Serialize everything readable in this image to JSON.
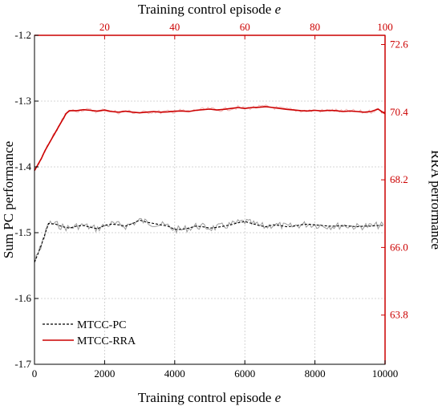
{
  "chart_data": {
    "type": "line",
    "x_top": {
      "label_text": "Training control episode ",
      "label_var": "e",
      "range": [
        0,
        100
      ],
      "ticks": [
        20,
        40,
        60,
        80,
        100
      ],
      "color": "#cc0000"
    },
    "x_bottom": {
      "label_text": "Training control episode ",
      "label_var": "e",
      "range": [
        0,
        10000
      ],
      "ticks": [
        0,
        2000,
        4000,
        6000,
        8000,
        10000
      ]
    },
    "y_left": {
      "label": "Sum PC performance",
      "range": [
        -1.7,
        -1.2
      ],
      "ticks": [
        -1.7,
        -1.6,
        -1.5,
        -1.4,
        -1.3,
        -1.2
      ],
      "tick_labels": [
        "-1.7",
        "-1.6",
        "-1.5",
        "-1.4",
        "-1.3",
        "-1.2"
      ]
    },
    "y_right": {
      "label": "RRA performance",
      "range": [
        62.2,
        72.9
      ],
      "ticks": [
        63.8,
        66.0,
        68.2,
        70.4,
        72.6
      ],
      "tick_labels": [
        "63.8",
        "66.0",
        "68.2",
        "70.4",
        "72.6"
      ],
      "color": "#cc0000"
    },
    "grid": true,
    "legend_position": "bottom-left",
    "series": [
      {
        "name": "MTCC-PC",
        "axis": "left",
        "color": "#000000",
        "raw_color": "#9a9a9a",
        "style": "dashed",
        "x": [
          0,
          100,
          200,
          300,
          400,
          600,
          800,
          1000,
          1200,
          1400,
          1600,
          1800,
          2000,
          2200,
          2400,
          2600,
          2800,
          3000,
          3200,
          3400,
          3600,
          3800,
          4000,
          4200,
          4400,
          4600,
          4800,
          5000,
          5200,
          5400,
          5600,
          5800,
          6000,
          6200,
          6400,
          6600,
          6800,
          7000,
          7200,
          7400,
          7600,
          7800,
          8000,
          8200,
          8400,
          8600,
          8800,
          9000,
          9200,
          9400,
          9600,
          9800,
          10000
        ],
        "y": [
          -1.545,
          -1.532,
          -1.518,
          -1.502,
          -1.486,
          -1.487,
          -1.491,
          -1.493,
          -1.49,
          -1.489,
          -1.492,
          -1.494,
          -1.489,
          -1.487,
          -1.488,
          -1.49,
          -1.486,
          -1.481,
          -1.484,
          -1.486,
          -1.488,
          -1.49,
          -1.495,
          -1.495,
          -1.493,
          -1.49,
          -1.491,
          -1.493,
          -1.492,
          -1.49,
          -1.488,
          -1.485,
          -1.483,
          -1.486,
          -1.489,
          -1.491,
          -1.488,
          -1.489,
          -1.491,
          -1.49,
          -1.488,
          -1.487,
          -1.488,
          -1.489,
          -1.49,
          -1.49,
          -1.489,
          -1.49,
          -1.491,
          -1.49,
          -1.49,
          -1.489,
          -1.489
        ]
      },
      {
        "name": "MTCC-RRA",
        "axis": "right",
        "color": "#cc0000",
        "raw_color": "#f2b4b4",
        "style": "solid",
        "x": [
          0,
          100,
          200,
          300,
          400,
          500,
          600,
          700,
          800,
          900,
          1000,
          1200,
          1400,
          1600,
          1800,
          2000,
          2200,
          2400,
          2600,
          2800,
          3000,
          3200,
          3400,
          3600,
          3800,
          4000,
          4200,
          4400,
          4600,
          4800,
          5000,
          5200,
          5400,
          5600,
          5800,
          6000,
          6200,
          6400,
          6600,
          6800,
          7000,
          7200,
          7400,
          7600,
          7800,
          8000,
          8200,
          8400,
          8600,
          8800,
          9000,
          9200,
          9400,
          9600,
          9800,
          10000
        ],
        "y": [
          68.5,
          68.7,
          68.9,
          69.15,
          69.35,
          69.55,
          69.75,
          69.95,
          70.15,
          70.35,
          70.45,
          70.45,
          70.48,
          70.46,
          70.43,
          70.47,
          70.42,
          70.4,
          70.43,
          70.4,
          70.38,
          70.4,
          70.42,
          70.4,
          70.41,
          70.43,
          70.44,
          70.42,
          70.46,
          70.48,
          70.5,
          70.47,
          70.49,
          70.52,
          70.55,
          70.52,
          70.55,
          70.56,
          70.58,
          70.55,
          70.52,
          70.49,
          70.47,
          70.45,
          70.44,
          70.46,
          70.44,
          70.46,
          70.45,
          70.42,
          70.44,
          70.42,
          70.4,
          70.42,
          70.5,
          70.35
        ]
      }
    ]
  }
}
